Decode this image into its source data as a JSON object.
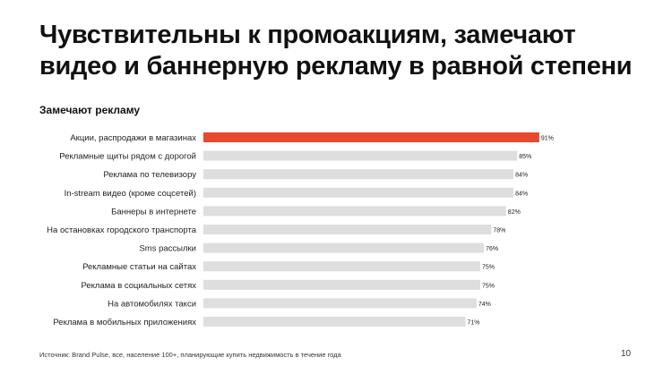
{
  "slide": {
    "title_line1": "Чувствительны к промоакциям, замечают",
    "title_line2": "видео и баннерную рекламу в равной степени",
    "source": "Источник: Brand Pulse, все, население 100+, планирующие купить недвижимость в течение года",
    "page_number": "10"
  },
  "colors": {
    "highlight": "#e8492f",
    "bar": "#dedede",
    "text": "#222222"
  },
  "chart_data": {
    "type": "bar",
    "orientation": "horizontal",
    "title": "Замечают рекламу",
    "xlim": [
      0,
      100
    ],
    "value_suffix": "%",
    "highlight_index": 0,
    "grid": false,
    "categories": [
      "Акции, распродажи в магазинах",
      "Рекламные щиты рядом с дорогой",
      "Реклама по телевизору",
      "In-stream видео (кроме соцсетей)",
      "Баннеры в интернете",
      "На остановках городского транспорта",
      "Sms рассылки",
      "Рекламные статьи на сайтах",
      "Реклама в социальных сетях",
      "На автомобилях такси",
      "Реклама в мобильных приложениях"
    ],
    "values": [
      91,
      85,
      84,
      84,
      82,
      78,
      76,
      75,
      75,
      74,
      71
    ]
  }
}
